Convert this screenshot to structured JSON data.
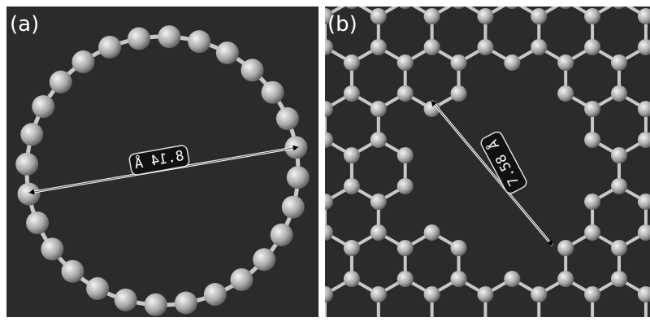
{
  "panels": [
    {
      "label": "(a)",
      "measurement": "8.14 Å"
    },
    {
      "label": "(b)",
      "measurement": "7.58 Å"
    }
  ]
}
